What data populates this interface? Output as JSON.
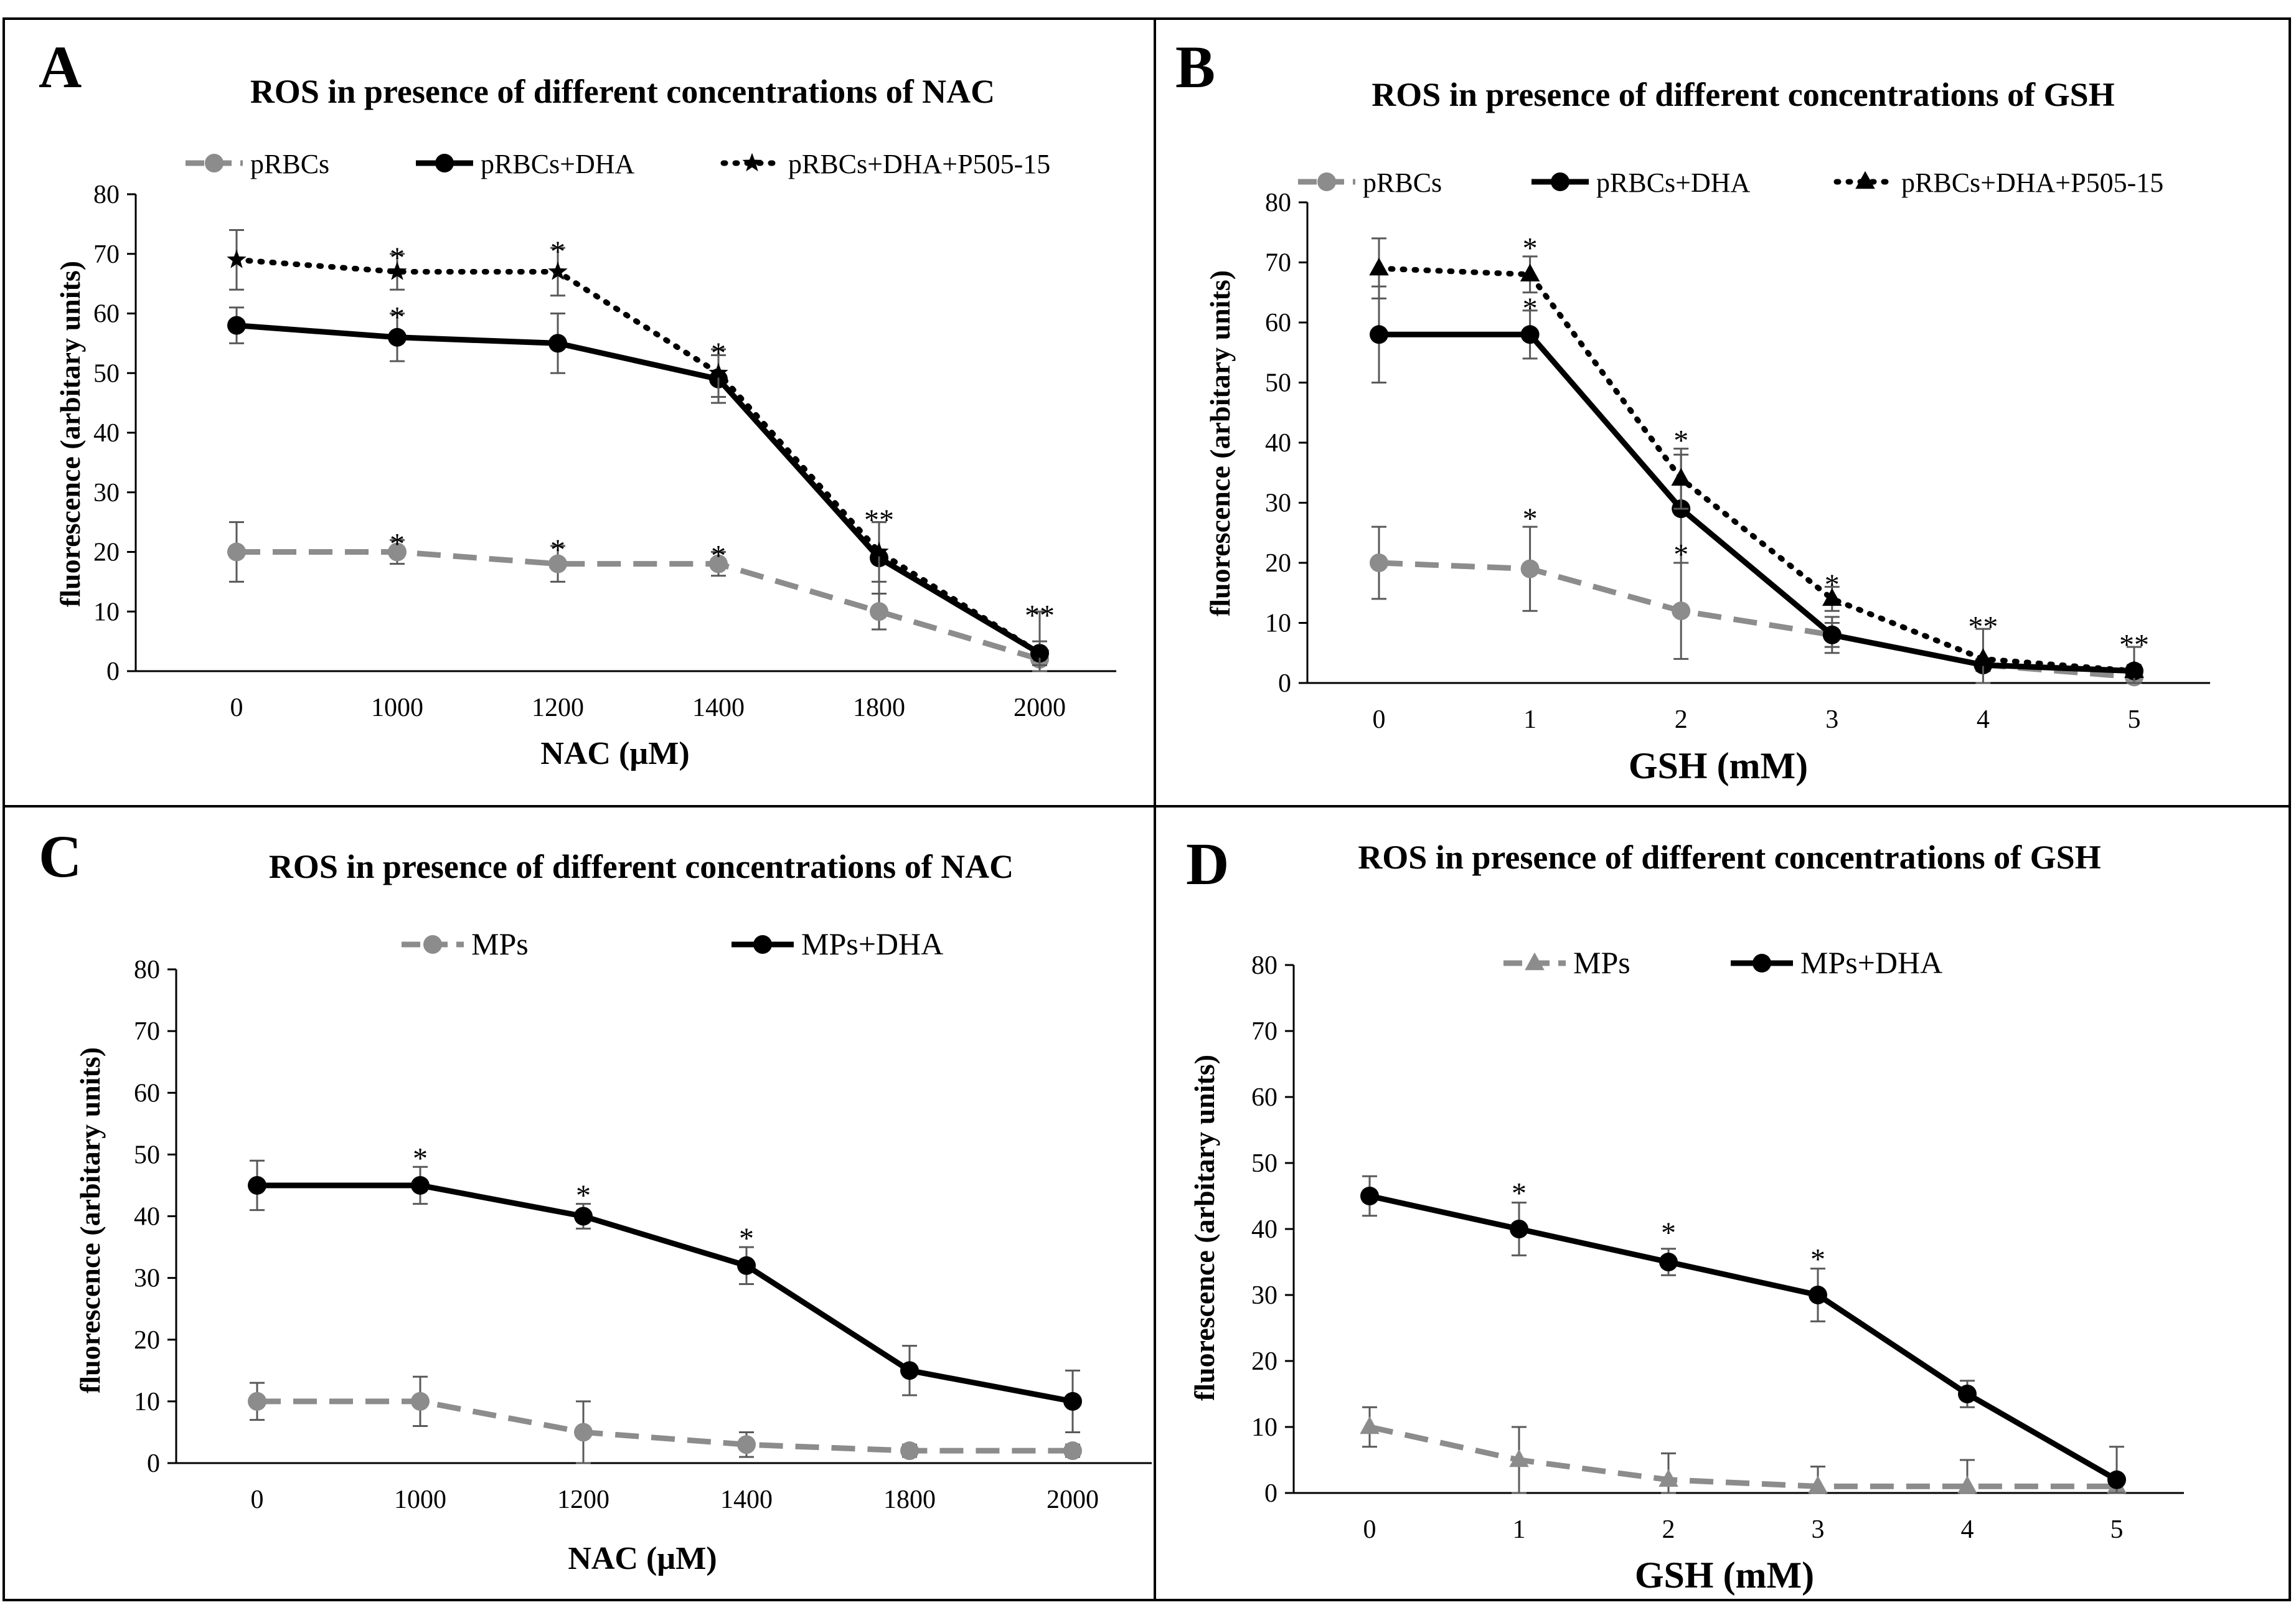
{
  "colors": {
    "black": "#000000",
    "gray": "#8c8c8c",
    "errbar": "#595959",
    "frame": "#000000"
  },
  "chart_data": [
    {
      "panel": "A",
      "type": "line",
      "title": "ROS in presence of different concentrations of NAC",
      "xlabel": "NAC (µM)",
      "ylabel": "fluorescence (arbitary units)",
      "categories": [
        "0",
        "1000",
        "1200",
        "1400",
        "1800",
        "2000"
      ],
      "ylim": [
        0,
        80
      ],
      "yticks": [
        0,
        10,
        20,
        30,
        40,
        50,
        60,
        70,
        80
      ],
      "grid": false,
      "legend_position": "top",
      "series": [
        {
          "name": "pRBCs",
          "style": "dashed",
          "color": "#8c8c8c",
          "marker": "circle",
          "values": [
            20,
            20,
            18,
            18,
            10,
            2
          ],
          "errors": [
            5,
            2,
            3,
            2,
            3,
            1
          ]
        },
        {
          "name": "pRBCs+DHA",
          "style": "solid",
          "color": "#000000",
          "marker": "circle",
          "values": [
            58,
            56,
            55,
            49,
            19,
            3
          ],
          "errors": [
            3,
            4,
            5,
            4,
            6,
            7
          ]
        },
        {
          "name": "pRBCs+DHA+P505-15",
          "style": "dotted",
          "color": "#000000",
          "marker": "star",
          "values": [
            69,
            67,
            67,
            50,
            20,
            3
          ],
          "errors": [
            5,
            3,
            4,
            4,
            5,
            2
          ]
        }
      ],
      "annotations": [
        {
          "x_index": 1,
          "value": 70,
          "text": "*"
        },
        {
          "x_index": 1,
          "value": 60,
          "text": "*"
        },
        {
          "x_index": 2,
          "value": 71,
          "text": "*"
        },
        {
          "x_index": 3,
          "value": 54,
          "text": "*"
        },
        {
          "x_index": 4,
          "value": 26,
          "text": "**"
        },
        {
          "x_index": 5,
          "value": 10,
          "text": "**"
        },
        {
          "x_index": 1,
          "value": 22,
          "text": "*"
        },
        {
          "x_index": 2,
          "value": 21,
          "text": "*"
        },
        {
          "x_index": 3,
          "value": 20,
          "text": "*"
        }
      ]
    },
    {
      "panel": "B",
      "type": "line",
      "title": "ROS in presence of different concentrations of GSH",
      "xlabel": "GSH (mM)",
      "ylabel": "fluorescence (arbitary units)",
      "categories": [
        "0",
        "1",
        "2",
        "3",
        "4",
        "5"
      ],
      "ylim": [
        0,
        80
      ],
      "yticks": [
        0,
        10,
        20,
        30,
        40,
        50,
        60,
        70,
        80
      ],
      "grid": false,
      "legend_position": "top",
      "series": [
        {
          "name": "pRBCs",
          "style": "dashed",
          "color": "#8c8c8c",
          "marker": "circle",
          "values": [
            20,
            19,
            12,
            8,
            3,
            1
          ],
          "errors": [
            6,
            7,
            8,
            2,
            1,
            1
          ]
        },
        {
          "name": "pRBCs+DHA",
          "style": "solid",
          "color": "#000000",
          "marker": "circle",
          "values": [
            58,
            58,
            29,
            8,
            3,
            2
          ],
          "errors": [
            8,
            4,
            9,
            3,
            1,
            1
          ]
        },
        {
          "name": "pRBCs+DHA+P505-15",
          "style": "dotted",
          "color": "#000000",
          "marker": "triangle",
          "values": [
            69,
            68,
            34,
            14,
            4,
            2
          ],
          "errors": [
            5,
            3,
            5,
            2,
            5,
            4
          ]
        }
      ],
      "annotations": [
        {
          "x_index": 1,
          "value": 73,
          "text": "*"
        },
        {
          "x_index": 1,
          "value": 63,
          "text": "*"
        },
        {
          "x_index": 2,
          "value": 41,
          "text": "*"
        },
        {
          "x_index": 2,
          "value": 22,
          "text": "*"
        },
        {
          "x_index": 3,
          "value": 17,
          "text": "*"
        },
        {
          "x_index": 4,
          "value": 10,
          "text": "**"
        },
        {
          "x_index": 5,
          "value": 7,
          "text": "**"
        },
        {
          "x_index": 1,
          "value": 28,
          "text": "*"
        }
      ]
    },
    {
      "panel": "C",
      "type": "line",
      "title": "ROS in presence of different concentrations of NAC",
      "xlabel": "NAC (µM)",
      "ylabel": "fluorescence (arbitary units)",
      "categories": [
        "0",
        "1000",
        "1200",
        "1400",
        "1800",
        "2000"
      ],
      "ylim": [
        0,
        80
      ],
      "yticks": [
        0,
        10,
        20,
        30,
        40,
        50,
        60,
        70,
        80
      ],
      "grid": false,
      "legend_position": "top",
      "series": [
        {
          "name": "MPs",
          "style": "dashed",
          "color": "#8c8c8c",
          "marker": "circle",
          "values": [
            10,
            10,
            5,
            3,
            2,
            2
          ],
          "errors": [
            3,
            4,
            5,
            2,
            1,
            1
          ]
        },
        {
          "name": "MPs+DHA",
          "style": "solid",
          "color": "#000000",
          "marker": "circle",
          "values": [
            45,
            45,
            40,
            32,
            15,
            10
          ],
          "errors": [
            4,
            3,
            2,
            3,
            4,
            5
          ]
        }
      ],
      "annotations": [
        {
          "x_index": 1,
          "value": 50,
          "text": "*"
        },
        {
          "x_index": 2,
          "value": 44,
          "text": "*"
        },
        {
          "x_index": 3,
          "value": 37,
          "text": "*"
        }
      ]
    },
    {
      "panel": "D",
      "type": "line",
      "title": "ROS in presence of different concentrations of GSH",
      "xlabel": "GSH (mM)",
      "ylabel": "fluorescence (arbitary units)",
      "categories": [
        "0",
        "1",
        "2",
        "3",
        "4",
        "5"
      ],
      "ylim": [
        0,
        80
      ],
      "yticks": [
        0,
        10,
        20,
        30,
        40,
        50,
        60,
        70,
        80
      ],
      "grid": false,
      "legend_position": "top",
      "series": [
        {
          "name": "MPs",
          "style": "dashed",
          "color": "#8c8c8c",
          "marker": "triangle",
          "values": [
            10,
            5,
            2,
            1,
            1,
            1
          ],
          "errors": [
            3,
            5,
            4,
            3,
            4,
            1
          ]
        },
        {
          "name": "MPs+DHA",
          "style": "solid",
          "color": "#000000",
          "marker": "circle",
          "values": [
            45,
            40,
            35,
            30,
            15,
            2
          ],
          "errors": [
            3,
            4,
            2,
            4,
            2,
            5
          ]
        }
      ],
      "annotations": [
        {
          "x_index": 1,
          "value": 46,
          "text": "*"
        },
        {
          "x_index": 2,
          "value": 40,
          "text": "*"
        },
        {
          "x_index": 3,
          "value": 36,
          "text": "*"
        }
      ]
    }
  ]
}
